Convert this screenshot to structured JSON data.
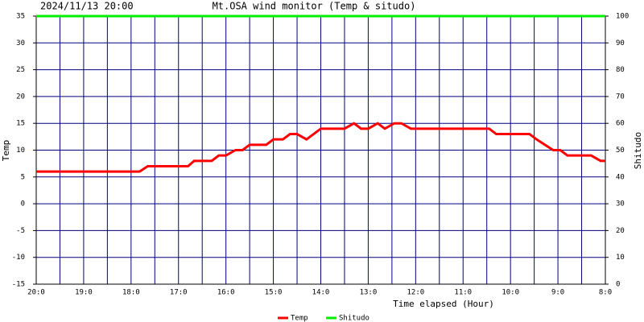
{
  "chart_data": {
    "type": "line",
    "title_left": "2024/11/13 20:00",
    "title": "Mt.OSA wind monitor (Temp & situdo)",
    "xlabel": "Time elapsed (Hour)",
    "ylabel": "Temp",
    "y2label": "Shitudo",
    "xlim": [
      20,
      8
    ],
    "xticks": [
      {
        "value": 20,
        "label": "20:0"
      },
      {
        "value": 19,
        "label": "19:0"
      },
      {
        "value": 18,
        "label": "18:0"
      },
      {
        "value": 17,
        "label": "17:0"
      },
      {
        "value": 16,
        "label": "16:0"
      },
      {
        "value": 15,
        "label": "15:0"
      },
      {
        "value": 14,
        "label": "14:0"
      },
      {
        "value": 13,
        "label": "13:0"
      },
      {
        "value": 12,
        "label": "12:0"
      },
      {
        "value": 11,
        "label": "11:0"
      },
      {
        "value": 10,
        "label": "10:0"
      },
      {
        "value": 9,
        "label": "9:0"
      },
      {
        "value": 8,
        "label": "8:0"
      }
    ],
    "minor_xticks": [
      19.5,
      18.5,
      17.5,
      16.5,
      15.5,
      14.5,
      13.5,
      12.5,
      11.5,
      10.5,
      9.5,
      8.5
    ],
    "ylim": [
      -15,
      35
    ],
    "yticks": [
      -15,
      -10,
      -5,
      0,
      5,
      10,
      15,
      20,
      25,
      30,
      35
    ],
    "y2lim": [
      0,
      100
    ],
    "y2ticks": [
      0,
      10,
      20,
      30,
      40,
      50,
      60,
      70,
      80,
      90,
      100
    ],
    "grid": true,
    "series": [
      {
        "name": "Temp",
        "color": "#ff0000",
        "x": [
          20.0,
          17.82,
          17.65,
          16.8,
          16.67,
          16.3,
          16.15,
          16.0,
          15.8,
          15.65,
          15.5,
          15.15,
          15.0,
          14.8,
          14.65,
          14.5,
          14.3,
          14.0,
          13.5,
          13.3,
          13.15,
          13.0,
          12.8,
          12.65,
          12.45,
          12.3,
          12.1,
          10.45,
          10.3,
          9.6,
          9.45,
          9.1,
          8.95,
          8.8,
          8.3,
          8.1,
          8.0
        ],
        "values": [
          6,
          6,
          7,
          7,
          8,
          8,
          9,
          9,
          10,
          10,
          11,
          11,
          12,
          12,
          13,
          13,
          12,
          14,
          14,
          15,
          14,
          14,
          15,
          14,
          15,
          15,
          14,
          14,
          13,
          13,
          12,
          10,
          10,
          9,
          9,
          8,
          8
        ]
      },
      {
        "name": "Shitudo",
        "color": "#00ee00",
        "axis": "y2",
        "x": [
          20.0,
          8.0
        ],
        "values": [
          100,
          100
        ]
      }
    ]
  }
}
